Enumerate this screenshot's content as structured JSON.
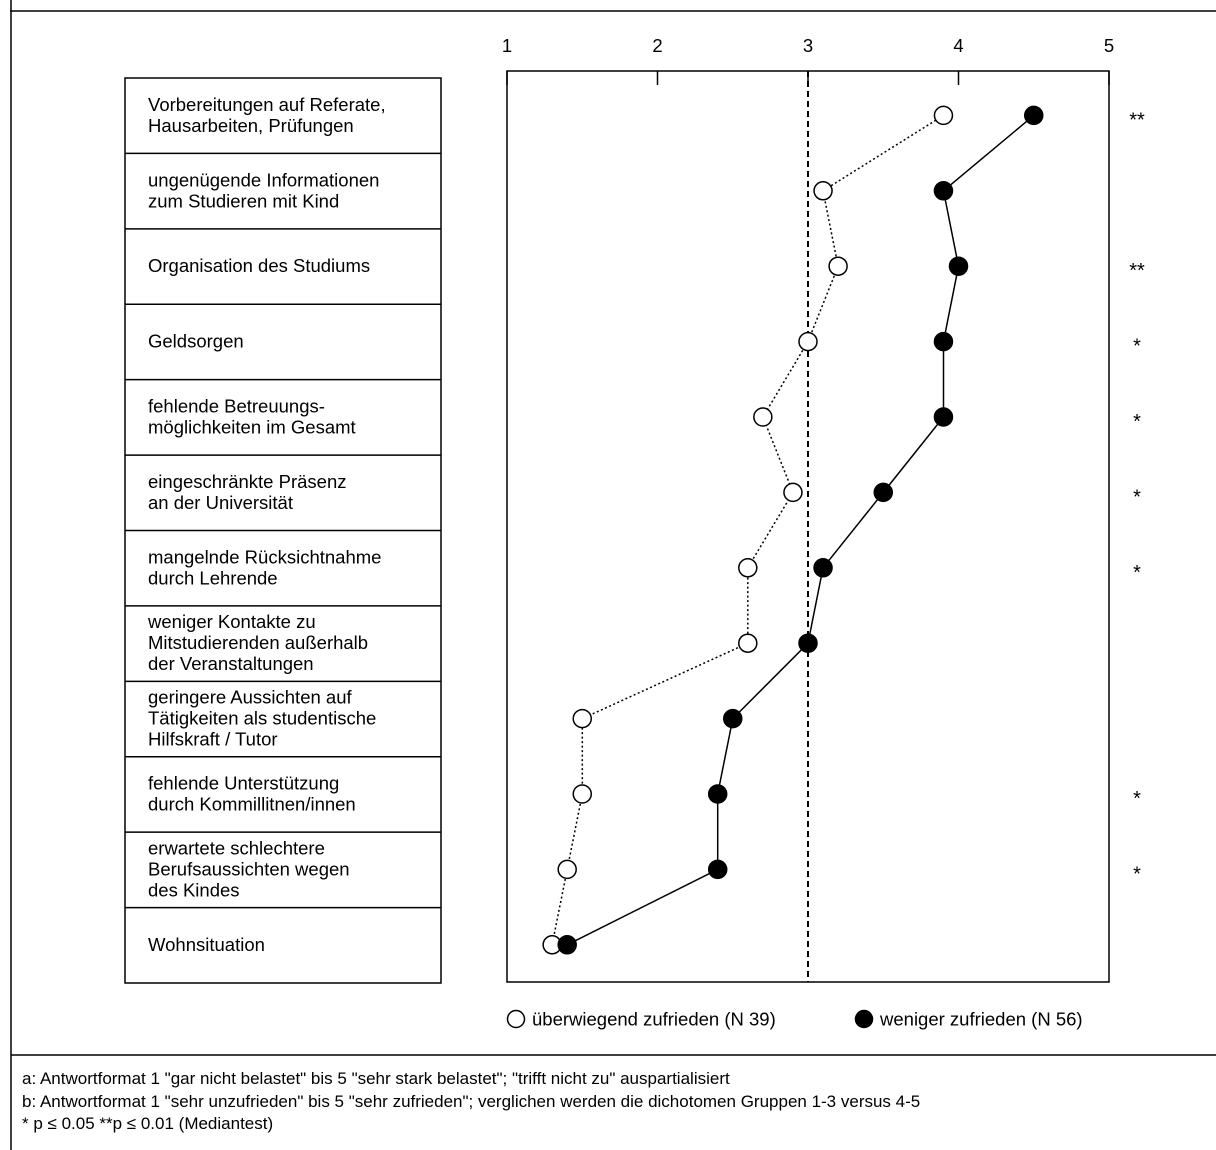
{
  "chart_data": {
    "type": "scatter",
    "orientation": "horizontal-dot-plot",
    "x_ticks": [
      "1",
      "2",
      "3",
      "4",
      "5"
    ],
    "xlim": [
      1,
      5
    ],
    "reference_line_x": 3,
    "categories": [
      [
        "Vorbereitungen auf Referate,",
        "Hausarbeiten, Prüfungen"
      ],
      [
        "ungenügende Informationen",
        "zum Studieren mit Kind"
      ],
      [
        "Organisation des Studiums"
      ],
      [
        "Geldsorgen"
      ],
      [
        "fehlende Betreuungs-",
        "möglichkeiten im Gesamt"
      ],
      [
        "eingeschränkte Präsenz",
        "an der Universität"
      ],
      [
        "mangelnde Rücksichtnahme",
        "durch Lehrende"
      ],
      [
        "weniger Kontakte zu",
        "Mitstudierenden außerhalb",
        "der Veranstaltungen"
      ],
      [
        "geringere Aussichten auf",
        "Tätigkeiten als studentische",
        "Hilfskraft / Tutor"
      ],
      [
        "fehlende Unterstützung",
        "durch Kommillitnen/innen"
      ],
      [
        "erwartete schlechtere",
        "Berufsaussichten wegen",
        "des Kindes"
      ],
      [
        "Wohnsituation"
      ]
    ],
    "significance": [
      "**",
      "",
      "**",
      "*",
      "*",
      "*",
      "*",
      "",
      "",
      "*",
      "*",
      ""
    ],
    "series": [
      {
        "name": "überwiegend zufrieden (N 39)",
        "marker": "open-circle",
        "line": "dotted",
        "values": [
          3.9,
          3.1,
          3.2,
          3.0,
          2.7,
          2.9,
          2.6,
          2.6,
          1.5,
          1.5,
          1.4,
          1.3
        ]
      },
      {
        "name": "weniger zufrieden (N 56)",
        "marker": "filled-circle",
        "line": "solid",
        "values": [
          4.5,
          3.9,
          4.0,
          3.9,
          3.9,
          3.5,
          3.1,
          3.0,
          2.5,
          2.4,
          2.4,
          1.4
        ]
      }
    ]
  },
  "footnotes": {
    "a": "a: Antwortformat 1 \"gar nicht belastet\" bis 5 \"sehr stark belastet\"; \"trifft nicht zu\" auspartialisiert",
    "b": "b: Antwortformat 1 \"sehr unzufrieden\" bis 5 \"sehr zufrieden\"; verglichen werden die dichotomen Gruppen 1-3 versus 4-5",
    "sig": "* p ≤ 0.05  **p ≤  0.01 (Mediantest)"
  }
}
